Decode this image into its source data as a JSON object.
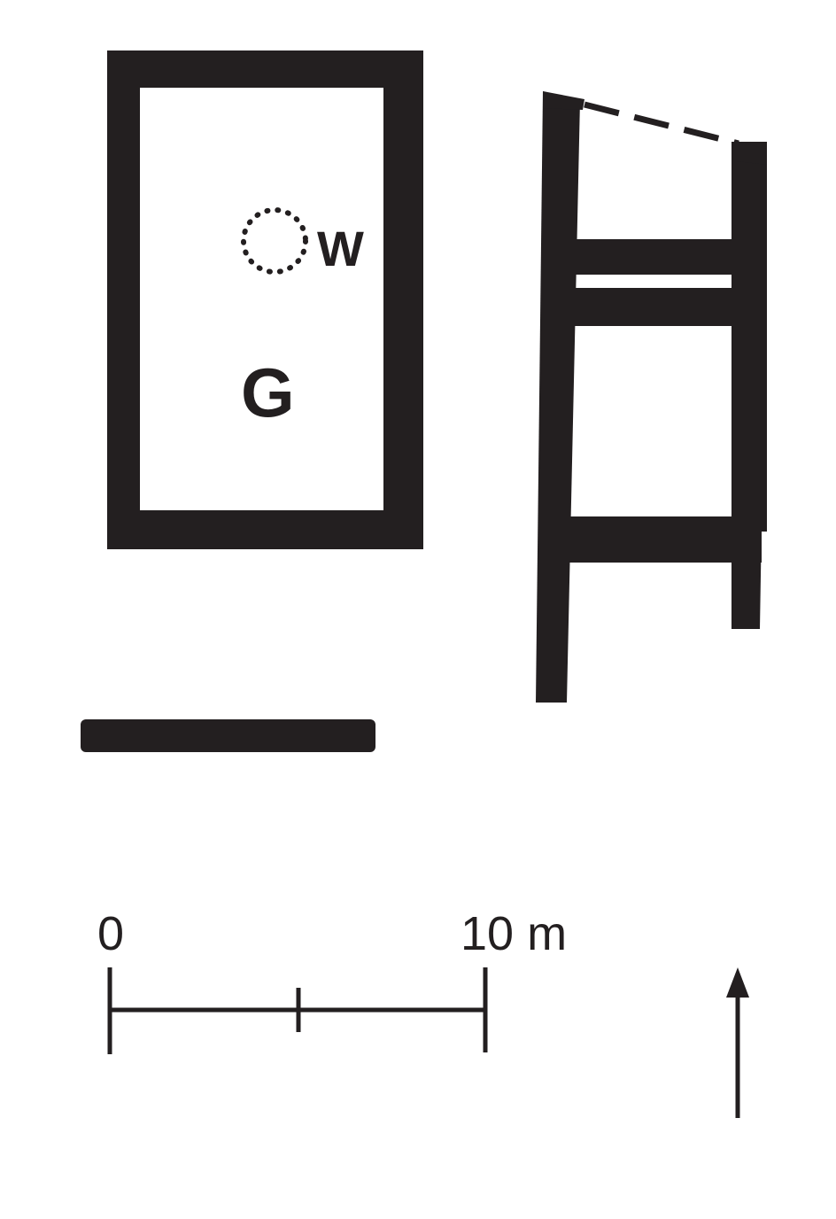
{
  "labels": {
    "room": "G",
    "well": "W"
  },
  "scale_bar": {
    "start_label": "0",
    "end_label": "10 m",
    "segments": 2
  },
  "colors": {
    "ink": "#231f20",
    "paper": "#ffffff"
  },
  "icons": {
    "north_arrow": "north-arrow-icon",
    "well_marker": "dotted-circle-icon"
  }
}
